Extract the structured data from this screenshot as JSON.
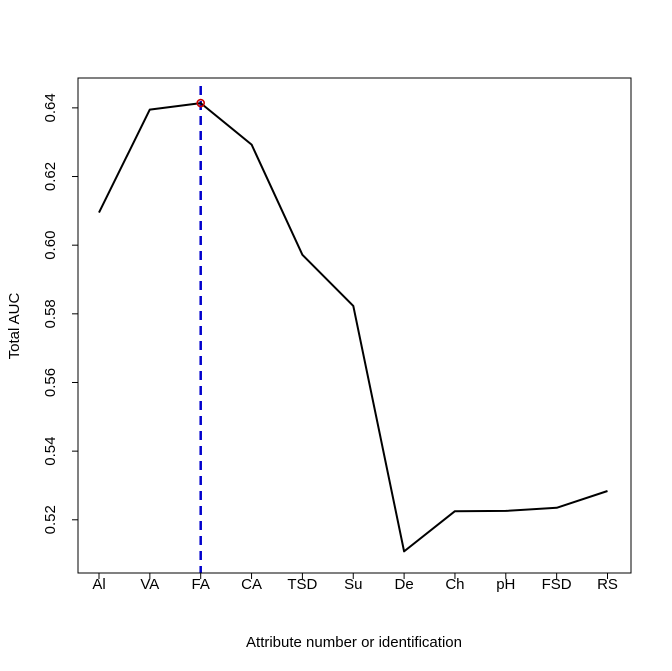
{
  "chart_data": {
    "type": "line",
    "xlabel": "Attribute number or identification",
    "ylabel": "Total AUC",
    "categories": [
      "Al",
      "VA",
      "FA",
      "CA",
      "TSD",
      "Su",
      "De",
      "Ch",
      "pH",
      "FSD",
      "RS"
    ],
    "values": [
      0.6095,
      0.6395,
      0.6414,
      0.6293,
      0.5972,
      0.5823,
      0.5108,
      0.5225,
      0.5226,
      0.5235,
      0.5284
    ],
    "yticks": [
      0.52,
      0.54,
      0.56,
      0.58,
      0.6,
      0.62,
      0.64
    ],
    "ytick_labels": [
      "0.52",
      "0.54",
      "0.56",
      "0.58",
      "0.60",
      "0.62",
      "0.64"
    ],
    "ylim": [
      0.5045,
      0.6487
    ],
    "highlight": {
      "category": "FA",
      "value": 0.6414,
      "marker_color": "#cc0000"
    },
    "vline": {
      "category": "FA",
      "color": "#0000cc",
      "style": "dashed"
    },
    "line_color": "#000000",
    "grid": false,
    "legend": "none"
  }
}
